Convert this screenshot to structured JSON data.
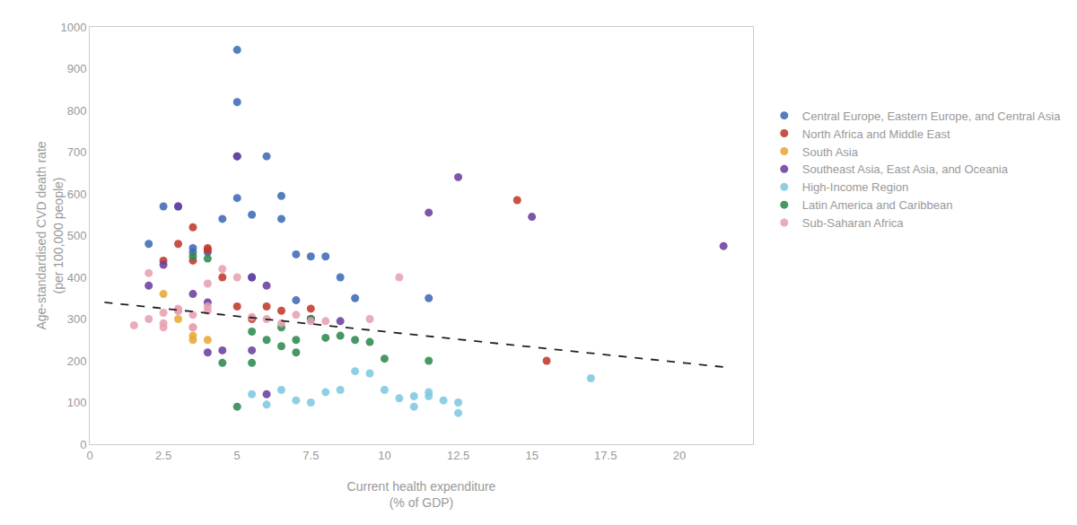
{
  "chart_data": {
    "type": "scatter",
    "xlabel": "Current health expenditure\n(% of GDP)",
    "ylabel": "Age-standardised CVD death rate\n(per 100,000 people)",
    "xlim": [
      0,
      22.5
    ],
    "ylim": [
      0,
      1000
    ],
    "xticks": [
      0,
      2.5,
      5,
      7.5,
      10,
      12.5,
      15,
      17.5,
      20
    ],
    "yticks": [
      0,
      100,
      200,
      300,
      400,
      500,
      600,
      700,
      800,
      900,
      1000
    ],
    "grid": false,
    "legend": "right",
    "marker": "circle",
    "series": [
      {
        "name": "Central Europe, Eastern Europe, and Central Asia",
        "color": "#3d6bb5",
        "x": [
          2.0,
          2.5,
          3.0,
          3.5,
          3.5,
          4.0,
          4.5,
          5.0,
          5.0,
          5.0,
          5.0,
          5.5,
          5.5,
          6.0,
          6.5,
          6.5,
          7.0,
          7.0,
          7.5,
          8.0,
          8.5,
          9.0,
          11.5
        ],
        "values": [
          480,
          570,
          570,
          460,
          470,
          460,
          540,
          945,
          820,
          690,
          590,
          550,
          400,
          690,
          595,
          540,
          455,
          345,
          450,
          450,
          400,
          350,
          350
        ]
      },
      {
        "name": "North Africa and Middle East",
        "color": "#c0392b",
        "x": [
          2.5,
          3.0,
          3.5,
          3.5,
          4.0,
          4.0,
          4.5,
          5.0,
          5.5,
          6.0,
          6.5,
          7.5,
          14.5,
          15.5
        ],
        "values": [
          440,
          480,
          440,
          520,
          470,
          465,
          400,
          330,
          300,
          330,
          320,
          325,
          585,
          200
        ]
      },
      {
        "name": "South Asia",
        "color": "#e8a838",
        "x": [
          2.5,
          3.0,
          3.5,
          3.5,
          4.0
        ],
        "values": [
          360,
          300,
          260,
          250,
          250
        ]
      },
      {
        "name": "Southeast Asia, East Asia, and Oceania",
        "color": "#6b3fa0",
        "x": [
          2.0,
          2.5,
          3.0,
          3.5,
          4.0,
          4.0,
          4.5,
          5.0,
          5.5,
          5.5,
          6.0,
          6.0,
          7.5,
          8.5,
          11.5,
          12.5,
          15.0,
          21.5
        ],
        "values": [
          380,
          430,
          570,
          360,
          340,
          220,
          225,
          690,
          400,
          225,
          380,
          120,
          300,
          295,
          555,
          640,
          545,
          475
        ]
      },
      {
        "name": "High-Income Region",
        "color": "#7ec8e3",
        "x": [
          5.5,
          6.0,
          6.5,
          7.0,
          7.5,
          8.0,
          8.5,
          9.0,
          9.5,
          10.0,
          10.5,
          11.0,
          11.0,
          11.5,
          11.5,
          12.0,
          12.5,
          12.5,
          17.0
        ],
        "values": [
          120,
          95,
          130,
          105,
          100,
          125,
          130,
          175,
          170,
          130,
          110,
          90,
          115,
          115,
          125,
          105,
          75,
          100,
          158
        ]
      },
      {
        "name": "Latin America and Caribbean",
        "color": "#2d8a4e",
        "x": [
          3.5,
          4.0,
          4.5,
          5.0,
          5.5,
          5.5,
          6.0,
          6.5,
          6.5,
          7.0,
          7.0,
          7.5,
          8.0,
          8.5,
          9.0,
          9.5,
          10.0,
          11.5
        ],
        "values": [
          450,
          445,
          195,
          90,
          270,
          195,
          250,
          280,
          235,
          250,
          220,
          300,
          255,
          260,
          250,
          245,
          205,
          200
        ]
      },
      {
        "name": "Sub-Saharan Africa",
        "color": "#e8a0b0",
        "x": [
          1.5,
          2.0,
          2.0,
          2.5,
          2.5,
          2.5,
          3.0,
          3.0,
          3.0,
          3.5,
          3.5,
          3.5,
          4.0,
          4.0,
          4.0,
          4.5,
          5.0,
          5.5,
          6.0,
          6.5,
          7.0,
          7.5,
          8.0,
          9.5,
          10.5
        ],
        "values": [
          285,
          300,
          410,
          290,
          280,
          315,
          325,
          320,
          320,
          280,
          310,
          280,
          320,
          330,
          385,
          420,
          400,
          305,
          300,
          290,
          310,
          295,
          295,
          300,
          400
        ]
      }
    ],
    "trendline": {
      "type": "line",
      "line_style": "dashed",
      "color": "#222222",
      "x": [
        0.5,
        21.5
      ],
      "values": [
        340,
        185
      ]
    }
  }
}
